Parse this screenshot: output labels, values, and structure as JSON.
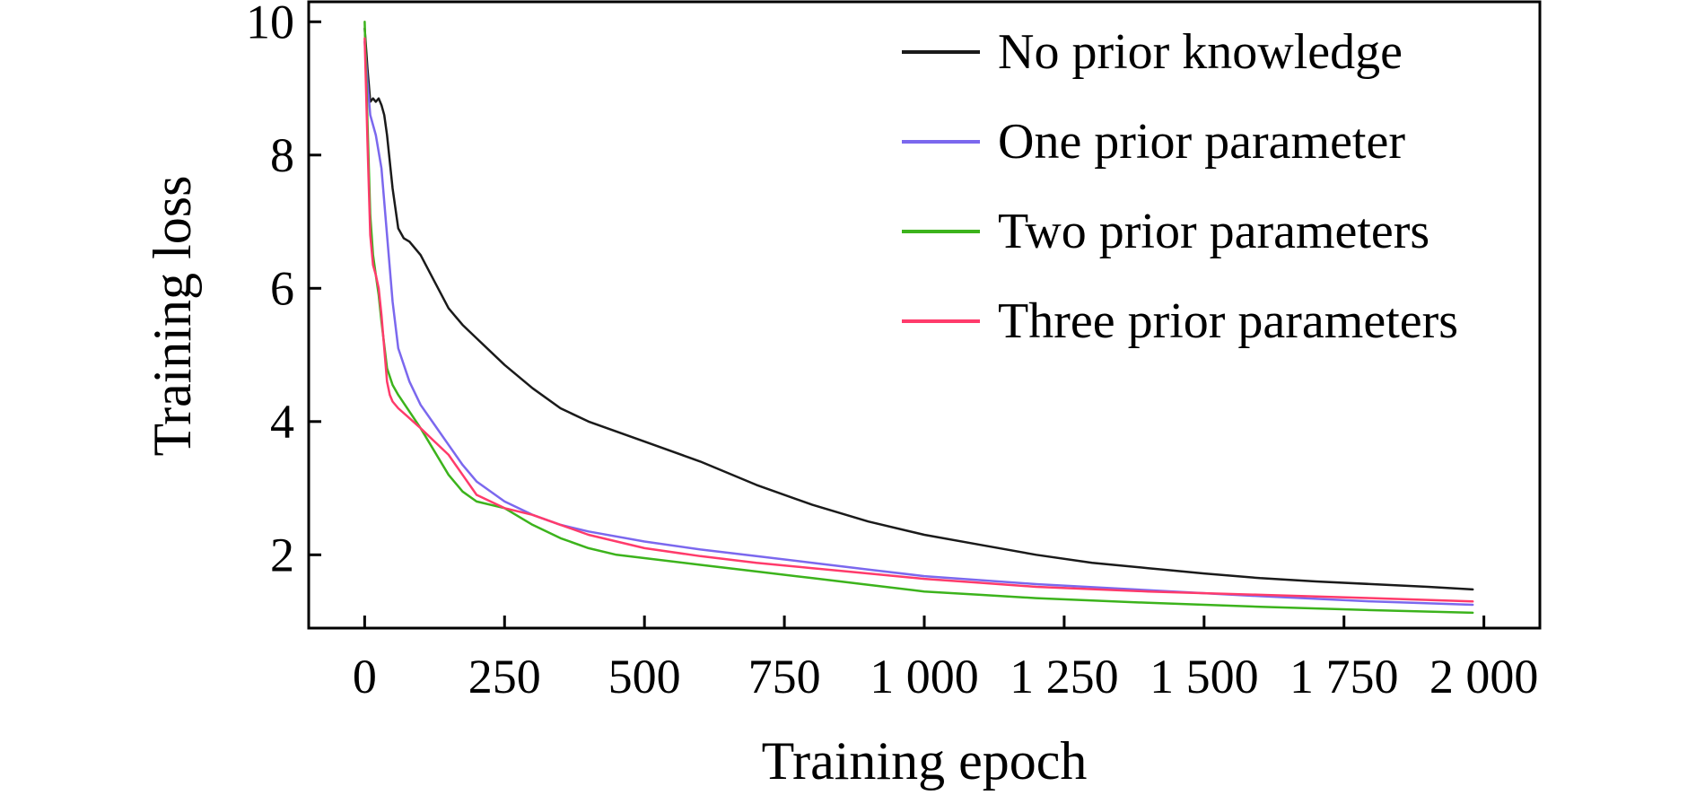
{
  "chart_data": {
    "type": "line",
    "title": "",
    "xlabel": "Training epoch",
    "ylabel": "Training loss",
    "xlim": [
      -100,
      2100
    ],
    "ylim": [
      0.9,
      10.3
    ],
    "grid": false,
    "legend_position": "top-right",
    "x_ticks": [
      0,
      250,
      500,
      750,
      1000,
      1250,
      1500,
      1750,
      2000
    ],
    "x_tick_labels": [
      "0",
      "250",
      "500",
      "750",
      "1 000",
      "1 250",
      "1 500",
      "1 750",
      "2 000"
    ],
    "y_ticks": [
      2,
      4,
      6,
      8,
      10
    ],
    "y_tick_labels": [
      "2",
      "4",
      "6",
      "8",
      "10"
    ],
    "series": [
      {
        "name": "No prior knowledge",
        "color": "#1a1a1a",
        "x": [
          0,
          5,
          10,
          15,
          20,
          25,
          30,
          35,
          40,
          50,
          60,
          70,
          80,
          100,
          125,
          150,
          175,
          200,
          250,
          300,
          350,
          400,
          450,
          500,
          600,
          700,
          800,
          900,
          1000,
          1100,
          1200,
          1300,
          1400,
          1500,
          1600,
          1700,
          1800,
          1900,
          1980
        ],
        "y": [
          9.9,
          9.3,
          8.8,
          8.85,
          8.8,
          8.85,
          8.75,
          8.6,
          8.3,
          7.5,
          6.9,
          6.75,
          6.7,
          6.5,
          6.1,
          5.7,
          5.45,
          5.25,
          4.85,
          4.5,
          4.2,
          4.0,
          3.85,
          3.7,
          3.4,
          3.05,
          2.75,
          2.5,
          2.3,
          2.15,
          2.0,
          1.88,
          1.8,
          1.72,
          1.65,
          1.6,
          1.56,
          1.52,
          1.48
        ]
      },
      {
        "name": "One prior parameter",
        "color": "#7b68ee",
        "x": [
          0,
          5,
          10,
          20,
          30,
          40,
          50,
          60,
          80,
          100,
          125,
          150,
          175,
          200,
          250,
          300,
          350,
          400,
          500,
          600,
          700,
          800,
          900,
          1000,
          1200,
          1400,
          1600,
          1800,
          1980
        ],
        "y": [
          9.7,
          9.1,
          8.6,
          8.3,
          7.8,
          6.8,
          5.8,
          5.1,
          4.6,
          4.25,
          3.95,
          3.65,
          3.35,
          3.1,
          2.8,
          2.6,
          2.45,
          2.35,
          2.2,
          2.08,
          1.98,
          1.88,
          1.78,
          1.68,
          1.56,
          1.47,
          1.38,
          1.3,
          1.25
        ]
      },
      {
        "name": "Two prior parameters",
        "color": "#3cb31c",
        "x": [
          0,
          5,
          10,
          15,
          20,
          25,
          30,
          40,
          50,
          60,
          80,
          100,
          125,
          150,
          175,
          200,
          250,
          300,
          350,
          400,
          450,
          500,
          600,
          700,
          800,
          900,
          1000,
          1100,
          1200,
          1400,
          1600,
          1800,
          1980
        ],
        "y": [
          10.0,
          8.5,
          7.1,
          6.5,
          6.2,
          5.9,
          5.5,
          4.8,
          4.55,
          4.4,
          4.15,
          3.9,
          3.55,
          3.2,
          2.95,
          2.8,
          2.7,
          2.45,
          2.25,
          2.1,
          2.0,
          1.95,
          1.85,
          1.75,
          1.65,
          1.55,
          1.45,
          1.4,
          1.35,
          1.28,
          1.22,
          1.17,
          1.13
        ]
      },
      {
        "name": "Three prior parameters",
        "color": "#ff3b6b",
        "x": [
          0,
          5,
          10,
          15,
          20,
          25,
          30,
          35,
          40,
          45,
          50,
          60,
          80,
          100,
          125,
          150,
          175,
          200,
          250,
          300,
          350,
          400,
          500,
          600,
          700,
          800,
          900,
          1000,
          1100,
          1200,
          1400,
          1600,
          1800,
          1980
        ],
        "y": [
          9.75,
          8.2,
          6.8,
          6.35,
          6.2,
          6.0,
          5.6,
          5.1,
          4.6,
          4.4,
          4.3,
          4.2,
          4.05,
          3.9,
          3.7,
          3.5,
          3.2,
          2.9,
          2.7,
          2.6,
          2.45,
          2.3,
          2.1,
          1.98,
          1.88,
          1.8,
          1.72,
          1.64,
          1.58,
          1.52,
          1.45,
          1.4,
          1.35,
          1.3
        ]
      }
    ]
  }
}
